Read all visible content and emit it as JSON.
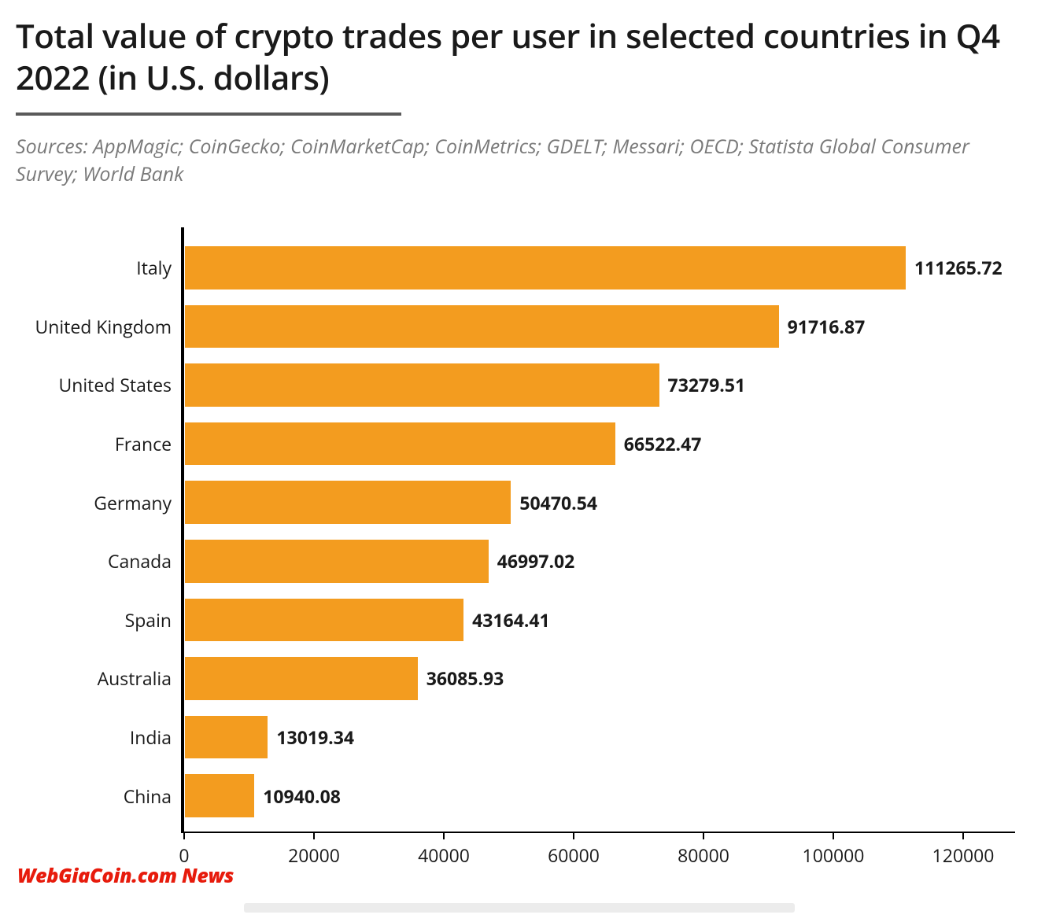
{
  "title": "Total value of crypto trades per user in selected countries in Q4 2022 (in U.S. dollars)",
  "sources": "Sources: AppMagic; CoinGecko; CoinMarketCap; CoinMetrics; GDELT; Messari; OECD; Statista Global Consumer Survey; World Bank",
  "watermark": "WebGiaCoin.com News",
  "chart": {
    "type": "horizontal-bar",
    "bar_color": "#f39c1f",
    "axis_color": "#000000",
    "background_color": "#ffffff",
    "title_fontsize": 42,
    "label_fontsize": 23,
    "value_fontsize": 23,
    "value_fontweight": 700,
    "x_min": 0,
    "x_max": 128000,
    "x_tick_step": 20000,
    "x_ticks": [
      0,
      20000,
      40000,
      60000,
      80000,
      100000,
      120000
    ],
    "categories": [
      "Italy",
      "United Kingdom",
      "United States",
      "France",
      "Germany",
      "Canada",
      "Spain",
      "Australia",
      "India",
      "China"
    ],
    "values": [
      111265.72,
      91716.87,
      73279.51,
      66522.47,
      50470.54,
      46997.02,
      43164.41,
      36085.93,
      13019.34,
      10940.08
    ],
    "value_labels": [
      "111265.72",
      "91716.87",
      "73279.51",
      "66522.47",
      "50470.54",
      "46997.02",
      "43164.41",
      "36085.93",
      "13019.34",
      "10940.08"
    ]
  }
}
